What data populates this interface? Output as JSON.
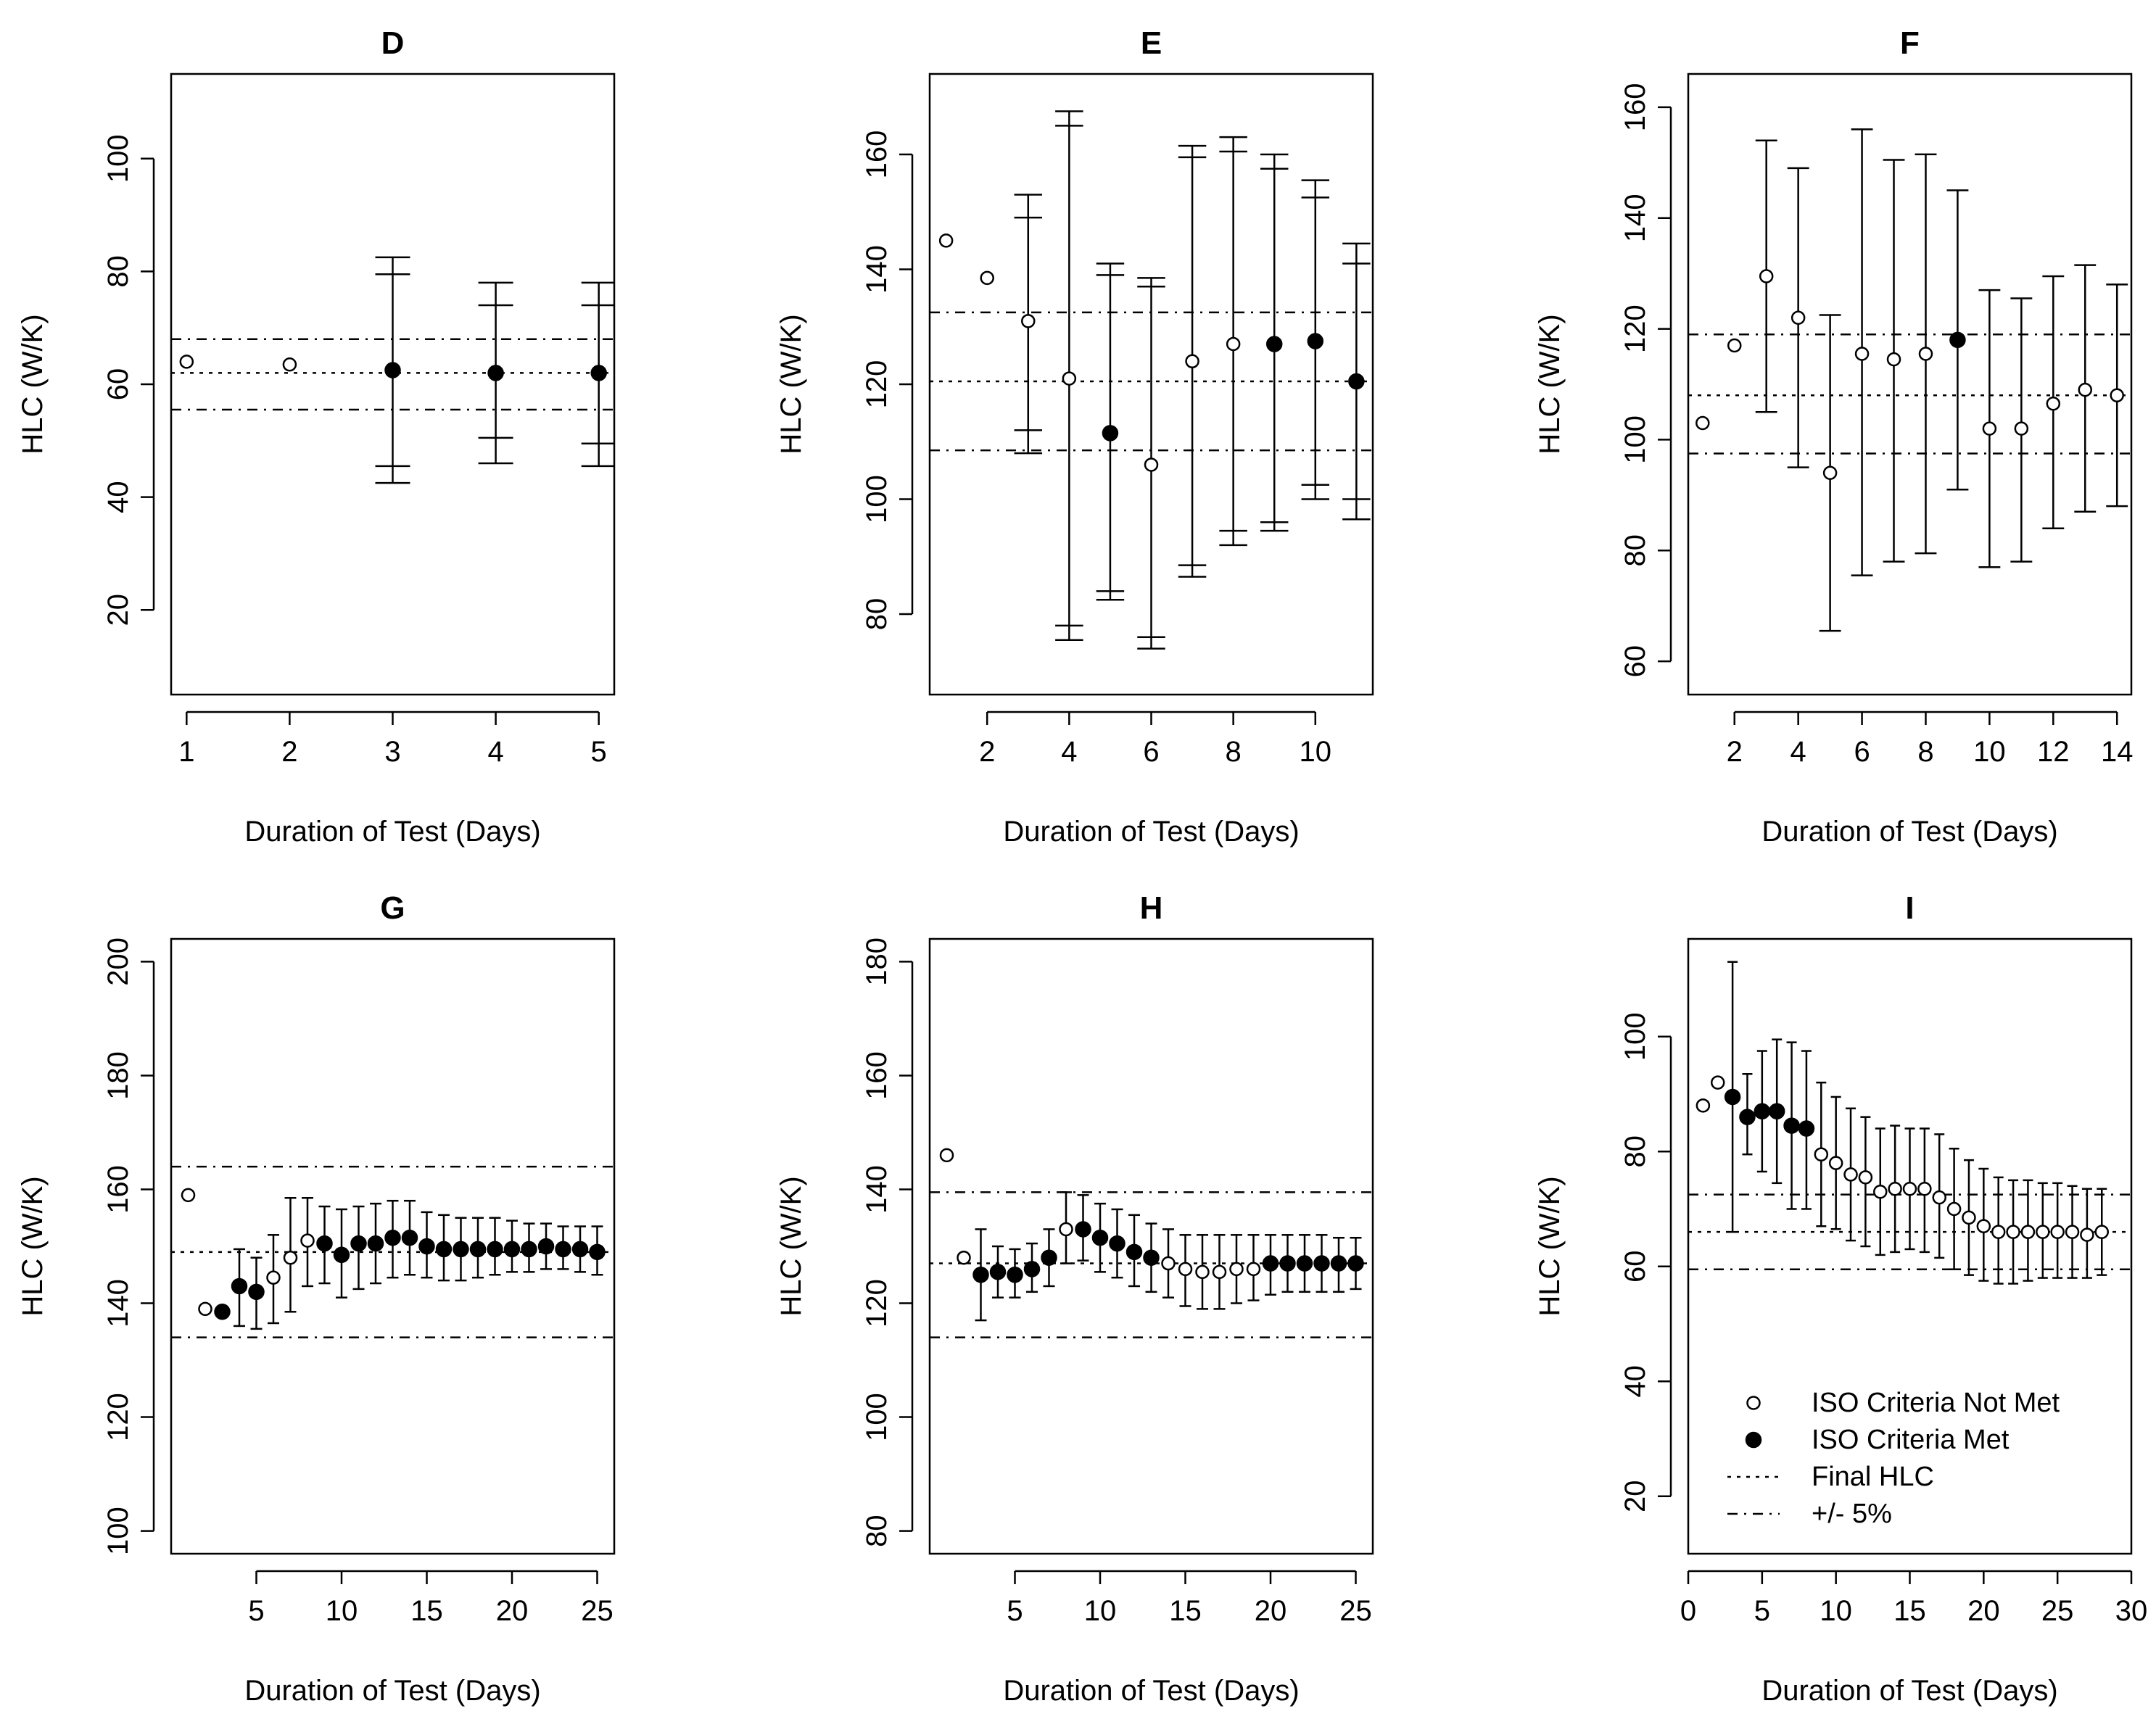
{
  "figure": {
    "panel_order": [
      "D",
      "E",
      "F",
      "G",
      "H",
      "I"
    ]
  },
  "legend": {
    "items": [
      {
        "label": "ISO Criteria Not Met",
        "symbol": "open-circle"
      },
      {
        "label": "ISO Criteria Met",
        "symbol": "filled-circle"
      },
      {
        "label": "Final HLC",
        "line": "dotted"
      },
      {
        "label": "+/- 5%",
        "line": "dash-dot"
      }
    ]
  },
  "chart_data": [
    {
      "type": "scatter",
      "title": "D",
      "xlabel": "Duration of Test (Days)",
      "ylabel": "HLC (W/K)",
      "xlim": [
        0.85,
        5.15
      ],
      "ylim": [
        5,
        115
      ],
      "xticks": [
        1,
        2,
        3,
        4,
        5
      ],
      "yticks": [
        20,
        40,
        60,
        80,
        100
      ],
      "final_hlc": 62,
      "band": [
        55.5,
        68
      ],
      "points": [
        {
          "x": 1,
          "y": 64,
          "met": false
        },
        {
          "x": 2,
          "y": 63.5,
          "met": false
        },
        {
          "x": 3,
          "y": 62.5,
          "met": true,
          "ci": [
            42.5,
            82.5
          ],
          "ci_inner": [
            45.5,
            79.5
          ]
        },
        {
          "x": 4,
          "y": 62,
          "met": true,
          "ci": [
            46,
            78
          ],
          "ci_inner": [
            50.5,
            74
          ]
        },
        {
          "x": 5,
          "y": 62,
          "met": true,
          "ci": [
            45.5,
            78
          ],
          "ci_inner": [
            49.5,
            74
          ]
        }
      ]
    },
    {
      "type": "scatter",
      "title": "E",
      "xlabel": "Duration of Test (Days)",
      "ylabel": "HLC (W/K)",
      "xlim": [
        0.6,
        11.4
      ],
      "ylim": [
        66,
        174
      ],
      "xticks": [
        2,
        4,
        6,
        8,
        10
      ],
      "yticks": [
        80,
        100,
        120,
        140,
        160
      ],
      "final_hlc": 120.5,
      "band": [
        108.5,
        132.5
      ],
      "points": [
        {
          "x": 1,
          "y": 145,
          "met": false
        },
        {
          "x": 2,
          "y": 138.5,
          "met": false
        },
        {
          "x": 3,
          "y": 131,
          "met": false,
          "ci": [
            108,
            153
          ],
          "ci_inner": [
            112,
            149
          ]
        },
        {
          "x": 4,
          "y": 121,
          "met": false,
          "ci": [
            75.5,
            167.5
          ],
          "ci_inner": [
            78,
            165
          ]
        },
        {
          "x": 5,
          "y": 111.5,
          "met": true,
          "ci": [
            82.5,
            141
          ],
          "ci_inner": [
            84,
            139
          ]
        },
        {
          "x": 6,
          "y": 106,
          "met": false,
          "ci": [
            74,
            138.5
          ],
          "ci_inner": [
            76,
            137
          ]
        },
        {
          "x": 7,
          "y": 124,
          "met": false,
          "ci": [
            86.5,
            161.5
          ],
          "ci_inner": [
            88.5,
            159.5
          ]
        },
        {
          "x": 8,
          "y": 127,
          "met": false,
          "ci": [
            92,
            163
          ],
          "ci_inner": [
            94.5,
            160.5
          ]
        },
        {
          "x": 9,
          "y": 127,
          "met": true,
          "ci": [
            94.5,
            160
          ],
          "ci_inner": [
            96,
            157.5
          ]
        },
        {
          "x": 10,
          "y": 127.5,
          "met": true,
          "ci": [
            100,
            155.5
          ],
          "ci_inner": [
            102.5,
            152.5
          ]
        },
        {
          "x": 11,
          "y": 120.5,
          "met": true,
          "ci": [
            96.5,
            144.5
          ],
          "ci_inner": [
            100,
            141
          ]
        }
      ]
    },
    {
      "type": "scatter",
      "title": "F",
      "xlabel": "Duration of Test (Days)",
      "ylabel": "HLC (W/K)",
      "xlim": [
        0.55,
        14.45
      ],
      "ylim": [
        54,
        166
      ],
      "xticks": [
        2,
        4,
        6,
        8,
        10,
        12,
        14
      ],
      "yticks": [
        60,
        80,
        100,
        120,
        140,
        160
      ],
      "final_hlc": 108,
      "band": [
        97.5,
        119
      ],
      "points": [
        {
          "x": 1,
          "y": 103,
          "met": false
        },
        {
          "x": 2,
          "y": 117,
          "met": false
        },
        {
          "x": 3,
          "y": 129.5,
          "met": false,
          "ci": [
            105,
            154
          ]
        },
        {
          "x": 4,
          "y": 122,
          "met": false,
          "ci": [
            95,
            149
          ]
        },
        {
          "x": 5,
          "y": 94,
          "met": false,
          "ci": [
            65.5,
            122.5
          ]
        },
        {
          "x": 6,
          "y": 115.5,
          "met": false,
          "ci": [
            75.5,
            156
          ]
        },
        {
          "x": 7,
          "y": 114.5,
          "met": false,
          "ci": [
            78,
            150.5
          ]
        },
        {
          "x": 8,
          "y": 115.5,
          "met": false,
          "ci": [
            79.5,
            151.5
          ]
        },
        {
          "x": 9,
          "y": 118,
          "met": true,
          "ci": [
            91,
            145
          ]
        },
        {
          "x": 10,
          "y": 102,
          "met": false,
          "ci": [
            77,
            127
          ]
        },
        {
          "x": 11,
          "y": 102,
          "met": false,
          "ci": [
            78,
            125.5
          ]
        },
        {
          "x": 12,
          "y": 106.5,
          "met": false,
          "ci": [
            84,
            129.5
          ]
        },
        {
          "x": 13,
          "y": 109,
          "met": false,
          "ci": [
            87,
            131.5
          ]
        },
        {
          "x": 14,
          "y": 108,
          "met": false,
          "ci": [
            88,
            128
          ]
        }
      ]
    },
    {
      "type": "scatter",
      "title": "G",
      "xlabel": "Duration of Test (Days)",
      "ylabel": "HLC (W/K)",
      "xlim": [
        0,
        26
      ],
      "ylim": [
        96,
        204
      ],
      "xticks": [
        5,
        10,
        15,
        20,
        25
      ],
      "yticks": [
        100,
        120,
        140,
        160,
        180,
        200
      ],
      "final_hlc": 149,
      "band": [
        134,
        164
      ],
      "points": [
        {
          "x": 1,
          "y": 159,
          "met": false
        },
        {
          "x": 2,
          "y": 139,
          "met": false
        },
        {
          "x": 3,
          "y": 138.5,
          "met": true
        },
        {
          "x": 4,
          "y": 143,
          "met": true,
          "ci": [
            136,
            149.5
          ]
        },
        {
          "x": 5,
          "y": 142,
          "met": true,
          "ci": [
            135.5,
            148
          ]
        },
        {
          "x": 6,
          "y": 144.5,
          "met": false,
          "ci": [
            136.5,
            152
          ]
        },
        {
          "x": 7,
          "y": 148,
          "met": false,
          "ci": [
            138.5,
            158.5
          ]
        },
        {
          "x": 8,
          "y": 151,
          "met": false,
          "ci": [
            143,
            158.5
          ]
        },
        {
          "x": 9,
          "y": 150.5,
          "met": true,
          "ci": [
            143.5,
            157
          ]
        },
        {
          "x": 10,
          "y": 148.5,
          "met": true,
          "ci": [
            141,
            156.5
          ]
        },
        {
          "x": 11,
          "y": 150.5,
          "met": true,
          "ci": [
            142.5,
            157
          ]
        },
        {
          "x": 12,
          "y": 150.5,
          "met": true,
          "ci": [
            143.5,
            157.5
          ]
        },
        {
          "x": 13,
          "y": 151.5,
          "met": true,
          "ci": [
            144.5,
            158
          ]
        },
        {
          "x": 14,
          "y": 151.5,
          "met": true,
          "ci": [
            145,
            158
          ]
        },
        {
          "x": 15,
          "y": 150,
          "met": true,
          "ci": [
            144.5,
            156
          ]
        },
        {
          "x": 16,
          "y": 149.5,
          "met": true,
          "ci": [
            144,
            155.5
          ]
        },
        {
          "x": 17,
          "y": 149.5,
          "met": true,
          "ci": [
            144,
            155
          ]
        },
        {
          "x": 18,
          "y": 149.5,
          "met": true,
          "ci": [
            144.5,
            155
          ]
        },
        {
          "x": 19,
          "y": 149.5,
          "met": true,
          "ci": [
            145,
            155
          ]
        },
        {
          "x": 20,
          "y": 149.5,
          "met": true,
          "ci": [
            145.5,
            154.5
          ]
        },
        {
          "x": 21,
          "y": 149.5,
          "met": true,
          "ci": [
            145.5,
            154
          ]
        },
        {
          "x": 22,
          "y": 150,
          "met": true,
          "ci": [
            146,
            154
          ]
        },
        {
          "x": 23,
          "y": 149.5,
          "met": true,
          "ci": [
            146,
            153.5
          ]
        },
        {
          "x": 24,
          "y": 149.5,
          "met": true,
          "ci": [
            145.5,
            153.5
          ]
        },
        {
          "x": 25,
          "y": 149,
          "met": true,
          "ci": [
            145,
            153.5
          ]
        }
      ]
    },
    {
      "type": "scatter",
      "title": "H",
      "xlabel": "Duration of Test (Days)",
      "ylabel": "HLC (W/K)",
      "xlim": [
        0,
        26
      ],
      "ylim": [
        76,
        184
      ],
      "xticks": [
        5,
        10,
        15,
        20,
        25
      ],
      "yticks": [
        80,
        100,
        120,
        140,
        160,
        180
      ],
      "final_hlc": 127,
      "band": [
        114,
        139.5
      ],
      "points": [
        {
          "x": 1,
          "y": 146,
          "met": false
        },
        {
          "x": 2,
          "y": 128,
          "met": false
        },
        {
          "x": 3,
          "y": 125,
          "met": true,
          "ci": [
            117,
            133
          ]
        },
        {
          "x": 4,
          "y": 125.5,
          "met": true,
          "ci": [
            121,
            130
          ]
        },
        {
          "x": 5,
          "y": 125,
          "met": true,
          "ci": [
            121,
            129.5
          ]
        },
        {
          "x": 6,
          "y": 126,
          "met": true,
          "ci": [
            122,
            130.5
          ]
        },
        {
          "x": 7,
          "y": 128,
          "met": true,
          "ci": [
            123,
            133
          ]
        },
        {
          "x": 8,
          "y": 133,
          "met": false,
          "ci": [
            127,
            139.5
          ]
        },
        {
          "x": 9,
          "y": 133,
          "met": true,
          "ci": [
            127.5,
            139
          ]
        },
        {
          "x": 10,
          "y": 131.5,
          "met": true,
          "ci": [
            125.5,
            137.5
          ]
        },
        {
          "x": 11,
          "y": 130.5,
          "met": true,
          "ci": [
            124.5,
            136.5
          ]
        },
        {
          "x": 12,
          "y": 129,
          "met": true,
          "ci": [
            123,
            135.5
          ]
        },
        {
          "x": 13,
          "y": 128,
          "met": true,
          "ci": [
            122,
            134
          ]
        },
        {
          "x": 14,
          "y": 127,
          "met": false,
          "ci": [
            121,
            133
          ]
        },
        {
          "x": 15,
          "y": 126,
          "met": false,
          "ci": [
            119.5,
            132
          ]
        },
        {
          "x": 16,
          "y": 125.5,
          "met": false,
          "ci": [
            119,
            132
          ]
        },
        {
          "x": 17,
          "y": 125.5,
          "met": false,
          "ci": [
            119,
            132
          ]
        },
        {
          "x": 18,
          "y": 126,
          "met": false,
          "ci": [
            120,
            132
          ]
        },
        {
          "x": 19,
          "y": 126,
          "met": false,
          "ci": [
            120.5,
            132
          ]
        },
        {
          "x": 20,
          "y": 127,
          "met": true,
          "ci": [
            121.5,
            132
          ]
        },
        {
          "x": 21,
          "y": 127,
          "met": true,
          "ci": [
            122,
            132
          ]
        },
        {
          "x": 22,
          "y": 127,
          "met": true,
          "ci": [
            122,
            132
          ]
        },
        {
          "x": 23,
          "y": 127,
          "met": true,
          "ci": [
            122,
            132
          ]
        },
        {
          "x": 24,
          "y": 127,
          "met": true,
          "ci": [
            122,
            131.5
          ]
        },
        {
          "x": 25,
          "y": 127,
          "met": true,
          "ci": [
            122.5,
            131.5
          ]
        }
      ]
    },
    {
      "type": "scatter",
      "title": "I",
      "xlabel": "Duration of Test (Days)",
      "ylabel": "HLC (W/K)",
      "xlim": [
        0,
        30
      ],
      "ylim": [
        10,
        117
      ],
      "xticks": [
        0,
        5,
        10,
        15,
        20,
        25,
        30
      ],
      "yticks": [
        20,
        40,
        60,
        80,
        100
      ],
      "final_hlc": 66,
      "band": [
        59.5,
        72.5
      ],
      "points": [
        {
          "x": 1,
          "y": 88,
          "met": false
        },
        {
          "x": 2,
          "y": 92,
          "met": false
        },
        {
          "x": 3,
          "y": 89.5,
          "met": true,
          "ci": [
            66,
            113
          ]
        },
        {
          "x": 4,
          "y": 86,
          "met": true,
          "ci": [
            79.5,
            93.5
          ]
        },
        {
          "x": 5,
          "y": 87,
          "met": true,
          "ci": [
            76.5,
            97.5
          ]
        },
        {
          "x": 6,
          "y": 87,
          "met": true,
          "ci": [
            74.5,
            99.5
          ]
        },
        {
          "x": 7,
          "y": 84.5,
          "met": true,
          "ci": [
            70,
            99
          ]
        },
        {
          "x": 8,
          "y": 84,
          "met": true,
          "ci": [
            70,
            97.5
          ]
        },
        {
          "x": 9,
          "y": 79.5,
          "met": false,
          "ci": [
            67,
            92
          ]
        },
        {
          "x": 10,
          "y": 78,
          "met": false,
          "ci": [
            66.5,
            89.5
          ]
        },
        {
          "x": 11,
          "y": 76,
          "met": false,
          "ci": [
            64.5,
            87.5
          ]
        },
        {
          "x": 12,
          "y": 75.5,
          "met": false,
          "ci": [
            63.5,
            86
          ]
        },
        {
          "x": 13,
          "y": 73,
          "met": false,
          "ci": [
            62,
            84
          ]
        },
        {
          "x": 14,
          "y": 73.5,
          "met": false,
          "ci": [
            62.5,
            84.5
          ]
        },
        {
          "x": 15,
          "y": 73.5,
          "met": false,
          "ci": [
            63,
            84
          ]
        },
        {
          "x": 16,
          "y": 73.5,
          "met": false,
          "ci": [
            62.5,
            84
          ]
        },
        {
          "x": 17,
          "y": 72,
          "met": false,
          "ci": [
            61.5,
            83
          ]
        },
        {
          "x": 18,
          "y": 70,
          "met": false,
          "ci": [
            59.5,
            80.5
          ]
        },
        {
          "x": 19,
          "y": 68.5,
          "met": false,
          "ci": [
            58.5,
            78.5
          ]
        },
        {
          "x": 20,
          "y": 67,
          "met": false,
          "ci": [
            57.5,
            77
          ]
        },
        {
          "x": 21,
          "y": 66,
          "met": false,
          "ci": [
            57,
            75.5
          ]
        },
        {
          "x": 22,
          "y": 66,
          "met": false,
          "ci": [
            57,
            75
          ]
        },
        {
          "x": 23,
          "y": 66,
          "met": false,
          "ci": [
            57.5,
            75
          ]
        },
        {
          "x": 24,
          "y": 66,
          "met": false,
          "ci": [
            58,
            74.5
          ]
        },
        {
          "x": 25,
          "y": 66,
          "met": false,
          "ci": [
            58,
            74.5
          ]
        },
        {
          "x": 26,
          "y": 66,
          "met": false,
          "ci": [
            58,
            74
          ]
        },
        {
          "x": 27,
          "y": 65.5,
          "met": false,
          "ci": [
            58,
            73.5
          ]
        },
        {
          "x": 28,
          "y": 66,
          "met": false,
          "ci": [
            58.5,
            73.5
          ]
        }
      ]
    }
  ]
}
